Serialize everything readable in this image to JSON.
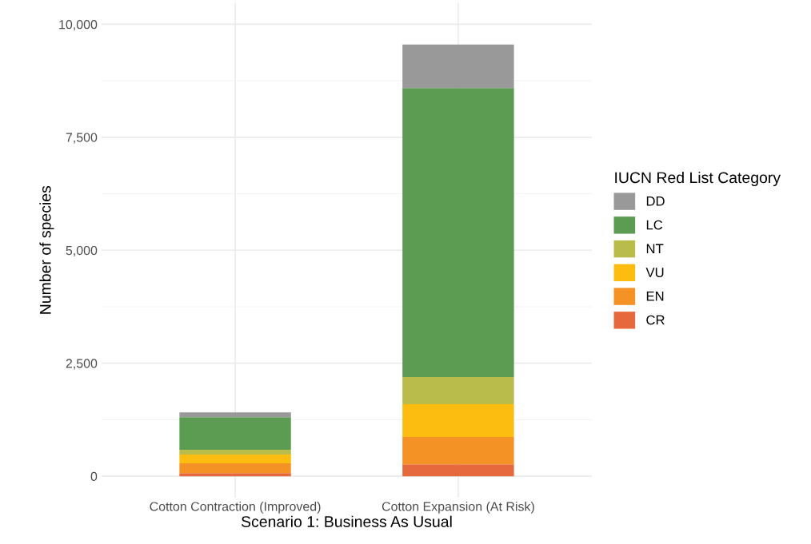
{
  "chart_data": {
    "type": "bar",
    "stacked": true,
    "xlabel": "Scenario 1: Business As Usual",
    "ylabel": "Number of species",
    "legend_title": "IUCN Red List Category",
    "categories": [
      "Cotton Contraction (Improved)",
      "Cotton Expansion (At Risk)"
    ],
    "series": [
      {
        "name": "CR",
        "color": "#e6693e",
        "values": [
          70,
          263
        ]
      },
      {
        "name": "EN",
        "color": "#f59225",
        "values": [
          215,
          607
        ]
      },
      {
        "name": "VU",
        "color": "#fdbd10",
        "values": [
          195,
          725
        ]
      },
      {
        "name": "NT",
        "color": "#b9bc4a",
        "values": [
          105,
          600
        ]
      },
      {
        "name": "LC",
        "color": "#5c9c52",
        "values": [
          720,
          6395
        ]
      },
      {
        "name": "DD",
        "color": "#999999",
        "values": [
          105,
          960
        ]
      }
    ],
    "ylim": [
      -477,
      10477
    ],
    "yticks": [
      {
        "value": 0,
        "label": "0"
      },
      {
        "value": 2500,
        "label": "2,500"
      },
      {
        "value": 5000,
        "label": "5,000"
      },
      {
        "value": 7500,
        "label": "7,500"
      },
      {
        "value": 10000,
        "label": "10,000"
      }
    ],
    "grid": true,
    "legend": "right"
  }
}
